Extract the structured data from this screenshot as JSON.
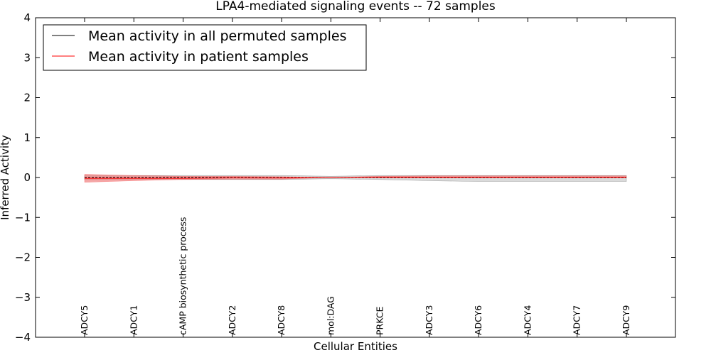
{
  "chart_data": {
    "type": "line",
    "title": "LPA4-mediated signaling events -- 72 samples",
    "xlabel": "Cellular Entities",
    "ylabel": "Inferred Activity",
    "ylim": [
      -4,
      4
    ],
    "yticks": [
      -4,
      -3,
      -2,
      -1,
      0,
      1,
      2,
      3,
      4
    ],
    "ytick_labels": [
      "−4",
      "−3",
      "−2",
      "−1",
      "0",
      "1",
      "2",
      "3",
      "4"
    ],
    "grid": false,
    "legend_position": "top-left",
    "categories": [
      "ADCY5",
      "ADCY1",
      "cAMP biosynthetic process",
      "ADCY2",
      "ADCY8",
      "mol:DAG",
      "PRKCE",
      "ADCY3",
      "ADCY6",
      "ADCY4",
      "ADCY7",
      "ADCY9"
    ],
    "series": [
      {
        "name": "Mean activity in all permuted samples",
        "color": "#000000",
        "band_color": "#bbbbbb",
        "values": [
          0.0,
          0.0,
          0.0,
          0.0,
          0.0,
          0.0,
          0.0,
          0.0,
          0.0,
          0.0,
          0.0,
          0.0
        ],
        "lower": [
          -0.05,
          -0.05,
          -0.05,
          -0.05,
          -0.05,
          -0.03,
          -0.05,
          -0.08,
          -0.1,
          -0.1,
          -0.1,
          -0.1
        ],
        "upper": [
          0.05,
          0.05,
          0.05,
          0.05,
          0.05,
          0.03,
          0.05,
          0.05,
          0.05,
          0.05,
          0.05,
          0.05
        ]
      },
      {
        "name": "Mean activity in patient samples",
        "color": "#ff0000",
        "band_color": "#f08080",
        "values": [
          -0.02,
          -0.02,
          -0.02,
          -0.01,
          -0.01,
          0.0,
          0.01,
          0.01,
          0.01,
          0.01,
          0.01,
          0.01
        ],
        "lower": [
          -0.12,
          -0.08,
          -0.05,
          -0.04,
          -0.04,
          0.0,
          -0.01,
          -0.01,
          -0.01,
          -0.01,
          -0.01,
          -0.01
        ],
        "upper": [
          0.08,
          0.05,
          0.03,
          0.03,
          0.02,
          0.0,
          0.03,
          0.04,
          0.04,
          0.04,
          0.04,
          0.04
        ]
      }
    ]
  }
}
